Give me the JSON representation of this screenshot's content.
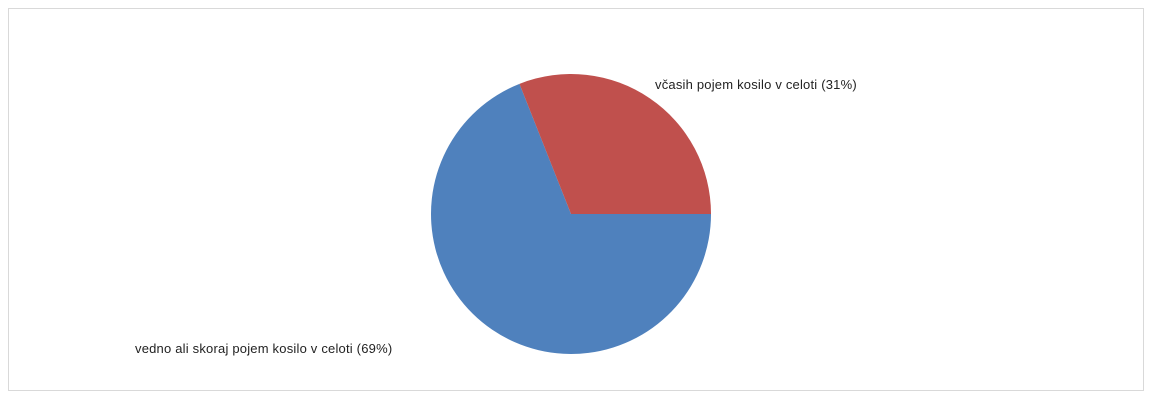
{
  "chart_data": {
    "type": "pie",
    "slices": [
      {
        "label": "vedno ali skoraj pojem kosilo v celoti (69%)",
        "value": 69,
        "color": "#4f81bd"
      },
      {
        "label": "včasih pojem kosilo v celoti (31%)",
        "value": 31,
        "color": "#c0504d"
      }
    ],
    "title": "",
    "legend": "none"
  }
}
